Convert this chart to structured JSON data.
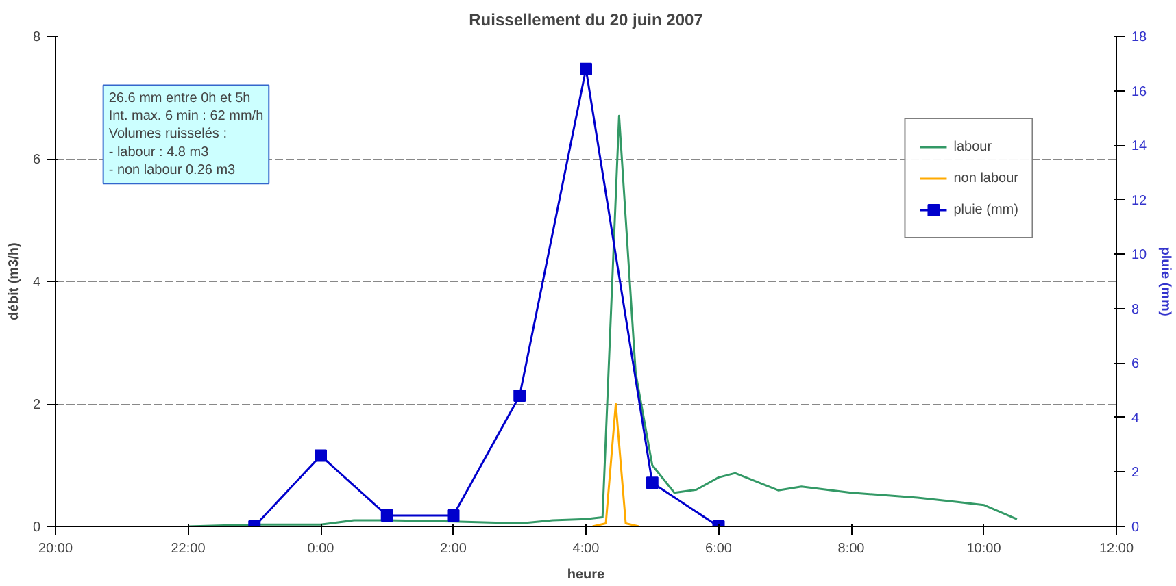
{
  "chart_data": {
    "type": "line",
    "title": "Ruissellement du 20 juin 2007",
    "xlabel": "heure",
    "ylabel": "débit (m3/h)",
    "y2label": "pluie (mm)",
    "xlim": [
      "2007-06-19T20:00",
      "2007-06-20T12:00"
    ],
    "xticks": [
      {
        "value": "2007-06-19T20:00",
        "label": "20:00"
      },
      {
        "value": "2007-06-19T22:00",
        "label": "22:00"
      },
      {
        "value": "2007-06-20T00:00",
        "label": "0:00"
      },
      {
        "value": "2007-06-20T02:00",
        "label": "2:00"
      },
      {
        "value": "2007-06-20T04:00",
        "label": "4:00"
      },
      {
        "value": "2007-06-20T06:00",
        "label": "6:00"
      },
      {
        "value": "2007-06-20T08:00",
        "label": "8:00"
      },
      {
        "value": "2007-06-20T10:00",
        "label": "10:00"
      },
      {
        "value": "2007-06-20T12:00",
        "label": "12:00"
      }
    ],
    "ylim": [
      0,
      8
    ],
    "yticks": [
      0,
      2,
      4,
      6,
      8
    ],
    "y2lim": [
      0,
      18
    ],
    "y2ticks": [
      0,
      2,
      4,
      6,
      8,
      10,
      12,
      14,
      16,
      18
    ],
    "grid": "y",
    "legend": "top right",
    "annotations": [
      "26.6 mm entre 0h et 5h",
      "Int. max. 6 min : 62 mm/h",
      "Volumes ruisselés :",
      " - labour : 4.8 m3",
      " - non labour 0.26 m3"
    ],
    "series": [
      {
        "name": "labour",
        "color": "#339966",
        "marker": "none",
        "x": [
          "2007-06-19T22:00",
          "2007-06-19T23:00",
          "2007-06-20T00:00",
          "2007-06-20T00:30",
          "2007-06-20T01:00",
          "2007-06-20T02:00",
          "2007-06-20T03:00",
          "2007-06-20T03:30",
          "2007-06-20T04:00",
          "2007-06-20T04:15",
          "2007-06-20T04:30",
          "2007-06-20T04:45",
          "2007-06-20T05:00",
          "2007-06-20T05:20",
          "2007-06-20T05:40",
          "2007-06-20T06:00",
          "2007-06-20T06:15",
          "2007-06-20T06:54",
          "2007-06-20T07:15",
          "2007-06-20T08:00",
          "2007-06-20T09:00",
          "2007-06-20T09:36",
          "2007-06-20T10:00",
          "2007-06-20T10:30"
        ],
        "values": [
          0,
          0.03,
          0.03,
          0.1,
          0.1,
          0.08,
          0.05,
          0.1,
          0.12,
          0.15,
          6.7,
          2.5,
          1.0,
          0.55,
          0.6,
          0.8,
          0.87,
          0.59,
          0.65,
          0.55,
          0.47,
          0.4,
          0.35,
          0.12
        ]
      },
      {
        "name": "non labour",
        "color": "#ffaa00",
        "marker": "none",
        "x": [
          "2007-06-20T04:06",
          "2007-06-20T04:18",
          "2007-06-20T04:27",
          "2007-06-20T04:36",
          "2007-06-20T04:48"
        ],
        "values": [
          0,
          0.05,
          2.0,
          0.05,
          0
        ]
      },
      {
        "name": "pluie (mm)",
        "color": "#0000cc",
        "marker": "square",
        "axis": "y2",
        "x": [
          "2007-06-19T23:00",
          "2007-06-20T00:00",
          "2007-06-20T01:00",
          "2007-06-20T02:00",
          "2007-06-20T03:00",
          "2007-06-20T04:00",
          "2007-06-20T05:00",
          "2007-06-20T06:00"
        ],
        "values": [
          0,
          2.6,
          0.4,
          0.4,
          4.8,
          16.8,
          1.6,
          0
        ]
      }
    ]
  }
}
